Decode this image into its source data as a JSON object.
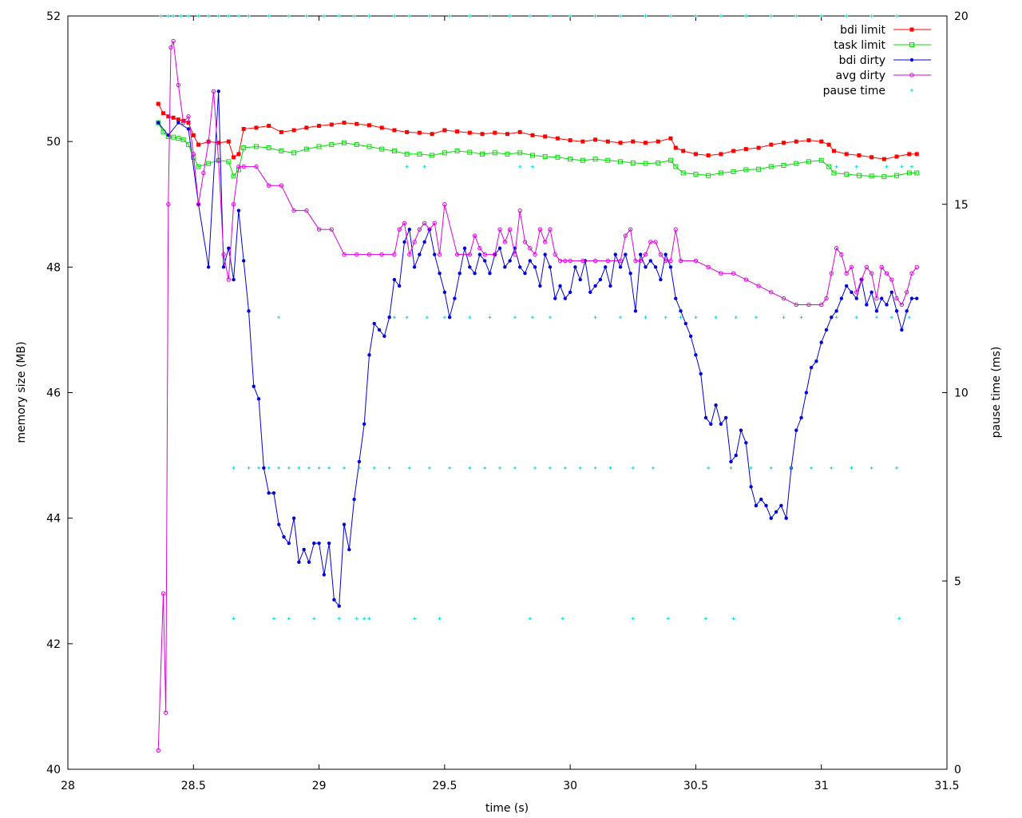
{
  "chart_data": {
    "type": "line",
    "title": "",
    "xlabel": "time (s)",
    "ylabel": "memory size (MB)",
    "y2label": "pause time (ms)",
    "xlim": [
      28,
      31.5
    ],
    "ylim": [
      40,
      52
    ],
    "y2lim": [
      0,
      20
    ],
    "xticks": [
      "28",
      "28.5",
      "29",
      "29.5",
      "30",
      "30.5",
      "31",
      "31.5"
    ],
    "yticks": [
      "40",
      "42",
      "44",
      "46",
      "48",
      "50",
      "52"
    ],
    "y2ticks": [
      "0",
      "5",
      "10",
      "15",
      "20"
    ],
    "grid": false,
    "legend_position": "top-right",
    "colors": {
      "bdi_limit": "#ff0000",
      "task_limit": "#00dd00",
      "bdi_dirty": "#0000dd",
      "avg_dirty": "#dd00dd",
      "pause_time": "#00dddd"
    },
    "series": [
      {
        "name": "bdi limit",
        "axis": "left",
        "marker": "filled-square",
        "x": [
          28.36,
          28.38,
          28.4,
          28.42,
          28.44,
          28.46,
          28.48,
          28.5,
          28.52,
          28.56,
          28.6,
          28.64,
          28.66,
          28.68,
          28.7,
          28.75,
          28.8,
          28.85,
          28.9,
          28.95,
          29.0,
          29.05,
          29.1,
          29.15,
          29.2,
          29.25,
          29.3,
          29.35,
          29.4,
          29.45,
          29.5,
          29.55,
          29.6,
          29.65,
          29.7,
          29.75,
          29.8,
          29.85,
          29.9,
          29.95,
          30.0,
          30.05,
          30.1,
          30.15,
          30.2,
          30.25,
          30.3,
          30.35,
          30.4,
          30.42,
          30.45,
          30.5,
          30.55,
          30.6,
          30.65,
          30.7,
          30.75,
          30.8,
          30.85,
          30.9,
          30.95,
          31.0,
          31.03,
          31.05,
          31.1,
          31.15,
          31.2,
          31.25,
          31.3,
          31.35,
          31.38
        ],
        "y": [
          50.6,
          50.45,
          50.4,
          50.38,
          50.35,
          50.33,
          50.3,
          50.1,
          49.95,
          50.0,
          49.98,
          50.0,
          49.75,
          49.8,
          50.2,
          50.22,
          50.25,
          50.15,
          50.18,
          50.22,
          50.25,
          50.27,
          50.3,
          50.28,
          50.26,
          50.22,
          50.18,
          50.15,
          50.14,
          50.12,
          50.18,
          50.16,
          50.14,
          50.12,
          50.14,
          50.12,
          50.15,
          50.1,
          50.08,
          50.05,
          50.02,
          50.0,
          50.03,
          50.0,
          49.98,
          50.0,
          49.98,
          50.0,
          50.05,
          49.9,
          49.85,
          49.8,
          49.78,
          49.8,
          49.85,
          49.88,
          49.9,
          49.95,
          49.98,
          50.0,
          50.02,
          50.0,
          49.95,
          49.85,
          49.8,
          49.78,
          49.75,
          49.72,
          49.76,
          49.8,
          49.8
        ]
      },
      {
        "name": "task limit",
        "axis": "left",
        "marker": "open-square",
        "x": [
          28.36,
          28.38,
          28.4,
          28.42,
          28.44,
          28.46,
          28.48,
          28.5,
          28.52,
          28.56,
          28.6,
          28.64,
          28.66,
          28.68,
          28.7,
          28.75,
          28.8,
          28.85,
          28.9,
          28.95,
          29.0,
          29.05,
          29.1,
          29.15,
          29.2,
          29.25,
          29.3,
          29.35,
          29.4,
          29.45,
          29.5,
          29.55,
          29.6,
          29.65,
          29.7,
          29.75,
          29.8,
          29.85,
          29.9,
          29.95,
          30.0,
          30.05,
          30.1,
          30.15,
          30.2,
          30.25,
          30.3,
          30.35,
          30.4,
          30.42,
          30.45,
          30.5,
          30.55,
          30.6,
          30.65,
          30.7,
          30.75,
          30.8,
          30.85,
          30.9,
          30.95,
          31.0,
          31.03,
          31.05,
          31.1,
          31.15,
          31.2,
          31.25,
          31.3,
          31.35,
          31.38
        ],
        "y": [
          50.3,
          50.15,
          50.08,
          50.07,
          50.05,
          50.03,
          49.95,
          49.75,
          49.6,
          49.65,
          49.7,
          49.68,
          49.45,
          49.55,
          49.9,
          49.92,
          49.9,
          49.85,
          49.82,
          49.88,
          49.92,
          49.95,
          49.98,
          49.95,
          49.92,
          49.88,
          49.85,
          49.8,
          49.8,
          49.78,
          49.82,
          49.85,
          49.83,
          49.8,
          49.82,
          49.8,
          49.82,
          49.78,
          49.76,
          49.75,
          49.72,
          49.7,
          49.72,
          49.7,
          49.68,
          49.66,
          49.65,
          49.66,
          49.7,
          49.6,
          49.5,
          49.48,
          49.46,
          49.5,
          49.52,
          49.55,
          49.56,
          49.6,
          49.62,
          49.65,
          49.68,
          49.7,
          49.6,
          49.5,
          49.48,
          49.46,
          49.45,
          49.44,
          49.46,
          49.5,
          49.5
        ]
      },
      {
        "name": "bdi dirty",
        "axis": "left",
        "marker": "filled-circle",
        "x": [
          28.36,
          28.4,
          28.44,
          28.48,
          28.52,
          28.56,
          28.6,
          28.62,
          28.64,
          28.66,
          28.68,
          28.7,
          28.72,
          28.74,
          28.76,
          28.78,
          28.8,
          28.82,
          28.84,
          28.86,
          28.88,
          28.9,
          28.92,
          28.94,
          28.96,
          28.98,
          29.0,
          29.02,
          29.04,
          29.06,
          29.08,
          29.1,
          29.12,
          29.14,
          29.16,
          29.18,
          29.2,
          29.22,
          29.24,
          29.26,
          29.28,
          29.3,
          29.32,
          29.34,
          29.36,
          29.38,
          29.4,
          29.42,
          29.44,
          29.46,
          29.48,
          29.5,
          29.52,
          29.54,
          29.56,
          29.58,
          29.6,
          29.62,
          29.64,
          29.66,
          29.68,
          29.7,
          29.72,
          29.74,
          29.76,
          29.78,
          29.8,
          29.82,
          29.84,
          29.86,
          29.88,
          29.9,
          29.92,
          29.94,
          29.96,
          29.98,
          30.0,
          30.02,
          30.04,
          30.06,
          30.08,
          30.1,
          30.12,
          30.14,
          30.16,
          30.18,
          30.2,
          30.22,
          30.24,
          30.26,
          30.28,
          30.3,
          30.32,
          30.34,
          30.36,
          30.38,
          30.4,
          30.42,
          30.44,
          30.46,
          30.48,
          30.5,
          30.52,
          30.54,
          30.56,
          30.58,
          30.6,
          30.62,
          30.64,
          30.66,
          30.68,
          30.7,
          30.72,
          30.74,
          30.76,
          30.78,
          30.8,
          30.82,
          30.84,
          30.86,
          30.88,
          30.9,
          30.92,
          30.94,
          30.96,
          30.98,
          31.0,
          31.02,
          31.04,
          31.06,
          31.08,
          31.1,
          31.12,
          31.14,
          31.16,
          31.18,
          31.2,
          31.22,
          31.24,
          31.26,
          31.28,
          31.3,
          31.32,
          31.34,
          31.36,
          31.38
        ],
        "y": [
          50.3,
          50.1,
          50.3,
          50.2,
          49.0,
          48.0,
          50.8,
          48.0,
          48.3,
          47.8,
          48.9,
          48.1,
          47.3,
          46.1,
          45.9,
          44.8,
          44.4,
          44.4,
          43.9,
          43.7,
          43.6,
          44.0,
          43.3,
          43.5,
          43.3,
          43.6,
          43.6,
          43.1,
          43.6,
          42.7,
          42.6,
          43.9,
          43.5,
          44.3,
          44.9,
          45.5,
          46.6,
          47.1,
          47.0,
          46.9,
          47.2,
          47.8,
          47.7,
          48.4,
          48.6,
          48.0,
          48.2,
          48.4,
          48.6,
          48.2,
          47.9,
          47.6,
          47.2,
          47.5,
          47.9,
          48.3,
          48.0,
          47.9,
          48.2,
          48.1,
          47.9,
          48.2,
          48.3,
          48.0,
          48.1,
          48.3,
          48.0,
          47.9,
          48.1,
          48.0,
          47.7,
          48.2,
          48.0,
          47.5,
          47.7,
          47.5,
          47.6,
          48.0,
          47.8,
          48.1,
          47.6,
          47.7,
          47.8,
          48.0,
          47.7,
          48.2,
          48.0,
          48.2,
          47.9,
          47.3,
          48.2,
          48.0,
          48.1,
          48.0,
          47.8,
          48.2,
          48.0,
          47.5,
          47.3,
          47.1,
          46.9,
          46.6,
          46.3,
          45.6,
          45.5,
          45.8,
          45.5,
          45.6,
          44.9,
          45.0,
          45.4,
          45.2,
          44.5,
          44.2,
          44.3,
          44.2,
          44.0,
          44.1,
          44.2,
          44.0,
          44.8,
          45.4,
          45.6,
          46.0,
          46.4,
          46.5,
          46.8,
          47.0,
          47.2,
          47.3,
          47.5,
          47.7,
          47.6,
          47.5,
          47.8,
          47.4,
          47.6,
          47.3,
          47.5,
          47.4,
          47.6,
          47.3,
          47.0,
          47.3,
          47.5,
          47.5
        ]
      },
      {
        "name": "avg dirty",
        "axis": "left",
        "marker": "open-circle",
        "x": [
          28.36,
          28.38,
          28.39,
          28.4,
          28.41,
          28.42,
          28.44,
          28.46,
          28.48,
          28.5,
          28.52,
          28.54,
          28.56,
          28.58,
          28.6,
          28.62,
          28.64,
          28.66,
          28.68,
          28.7,
          28.75,
          28.8,
          28.85,
          28.9,
          28.95,
          29.0,
          29.05,
          29.1,
          29.15,
          29.2,
          29.25,
          29.3,
          29.32,
          29.34,
          29.36,
          29.38,
          29.4,
          29.42,
          29.44,
          29.46,
          29.48,
          29.5,
          29.55,
          29.6,
          29.62,
          29.64,
          29.66,
          29.7,
          29.72,
          29.74,
          29.76,
          29.78,
          29.8,
          29.82,
          29.84,
          29.86,
          29.88,
          29.9,
          29.92,
          29.94,
          29.96,
          29.98,
          30.0,
          30.05,
          30.1,
          30.15,
          30.2,
          30.22,
          30.24,
          30.26,
          30.28,
          30.3,
          30.32,
          30.34,
          30.36,
          30.38,
          30.4,
          30.42,
          30.44,
          30.5,
          30.55,
          30.6,
          30.65,
          30.7,
          30.75,
          30.8,
          30.85,
          30.9,
          30.95,
          31.0,
          31.02,
          31.04,
          31.06,
          31.08,
          31.1,
          31.12,
          31.14,
          31.16,
          31.18,
          31.2,
          31.22,
          31.24,
          31.26,
          31.28,
          31.3,
          31.32,
          31.34,
          31.36,
          31.38
        ],
        "y": [
          40.3,
          42.8,
          40.9,
          49.0,
          51.5,
          51.6,
          50.9,
          50.3,
          50.4,
          49.8,
          49.0,
          49.5,
          50.0,
          50.8,
          49.7,
          48.2,
          47.8,
          49.0,
          49.6,
          49.6,
          49.6,
          49.3,
          49.3,
          48.9,
          48.9,
          48.6,
          48.6,
          48.2,
          48.2,
          48.2,
          48.2,
          48.2,
          48.6,
          48.7,
          48.2,
          48.4,
          48.6,
          48.7,
          48.6,
          48.7,
          48.2,
          49.0,
          48.2,
          48.2,
          48.5,
          48.3,
          48.2,
          48.2,
          48.6,
          48.4,
          48.6,
          48.2,
          48.9,
          48.4,
          48.3,
          48.2,
          48.6,
          48.4,
          48.6,
          48.2,
          48.1,
          48.1,
          48.1,
          48.1,
          48.1,
          48.1,
          48.1,
          48.5,
          48.6,
          48.1,
          48.1,
          48.2,
          48.4,
          48.4,
          48.2,
          48.1,
          48.1,
          48.6,
          48.1,
          48.1,
          48.0,
          47.9,
          47.9,
          47.8,
          47.7,
          47.6,
          47.5,
          47.4,
          47.4,
          47.4,
          47.5,
          47.9,
          48.3,
          48.2,
          47.9,
          48.0,
          47.6,
          47.8,
          48.0,
          47.9,
          47.5,
          48.0,
          47.9,
          47.8,
          47.5,
          47.4,
          47.6,
          47.9,
          48.0
        ]
      },
      {
        "name": "pause time",
        "axis": "right",
        "marker": "plus",
        "x": [
          28.37,
          28.4,
          28.42,
          28.45,
          28.48,
          28.52,
          28.56,
          28.6,
          28.64,
          28.68,
          28.72,
          28.8,
          28.88,
          28.95,
          29.02,
          29.08,
          29.14,
          29.2,
          29.3,
          29.36,
          29.44,
          29.52,
          29.6,
          29.68,
          29.76,
          29.84,
          29.92,
          30.0,
          30.1,
          30.2,
          30.3,
          30.4,
          30.5,
          30.6,
          30.7,
          30.8,
          30.9,
          31.0,
          31.1,
          31.2,
          31.3,
          28.66,
          28.82,
          28.88,
          28.98,
          29.08,
          29.15,
          29.18,
          29.2,
          29.38,
          29.48,
          29.84,
          29.97,
          30.25,
          30.39,
          30.54,
          30.65,
          31.31,
          28.66,
          28.72,
          28.76,
          28.8,
          28.84,
          28.88,
          28.92,
          28.96,
          29.0,
          29.04,
          29.1,
          29.16,
          29.22,
          29.28,
          29.36,
          29.44,
          29.52,
          29.6,
          29.66,
          29.72,
          29.78,
          29.86,
          29.92,
          29.98,
          30.04,
          30.1,
          30.16,
          30.25,
          30.33,
          30.55,
          30.64,
          30.72,
          30.8,
          30.88,
          30.96,
          31.04,
          31.12,
          31.2,
          31.3,
          28.84,
          29.3,
          29.35,
          29.43,
          29.5,
          29.6,
          29.68,
          29.78,
          29.85,
          29.92,
          30.1,
          30.2,
          30.3,
          30.38,
          30.44,
          30.5,
          30.58,
          30.66,
          30.74,
          30.85,
          30.92,
          31.06,
          31.14,
          31.22,
          31.28,
          31.35,
          29.35,
          29.42,
          29.8,
          29.85,
          31.06,
          31.14,
          31.26,
          31.32,
          31.36
        ],
        "y": [
          20,
          20,
          20,
          20,
          20,
          20,
          20,
          20,
          20,
          20,
          20,
          20,
          20,
          20,
          20,
          20,
          20,
          20,
          20,
          20,
          20,
          20,
          20,
          20,
          20,
          20,
          20,
          20,
          20,
          20,
          20,
          20,
          20,
          20,
          20,
          20,
          20,
          20,
          20,
          20,
          20,
          4,
          4,
          4,
          4,
          4,
          4,
          4,
          4,
          4,
          4,
          4,
          4,
          4,
          4,
          4,
          4,
          4,
          8,
          8,
          8,
          8,
          8,
          8,
          8,
          8,
          8,
          8,
          8,
          8,
          8,
          8,
          8,
          8,
          8,
          8,
          8,
          8,
          8,
          8,
          8,
          8,
          8,
          8,
          8,
          8,
          8,
          8,
          8,
          8,
          8,
          8,
          8,
          8,
          8,
          8,
          8,
          12,
          12,
          12,
          12,
          12,
          12,
          12,
          12,
          12,
          12,
          12,
          12,
          12,
          12,
          12,
          12,
          12,
          12,
          12,
          12,
          12,
          12,
          12,
          12,
          12,
          12,
          16,
          16,
          16,
          16,
          16,
          16,
          16,
          16,
          16
        ]
      }
    ]
  }
}
